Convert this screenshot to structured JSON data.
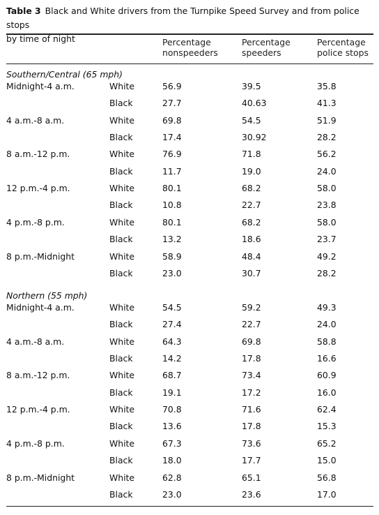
{
  "table": {
    "label": "Table 3",
    "title_line1": "Black and White drivers from the Turnpike Speed Survey and from police stops",
    "title_line2": "by time of night",
    "headers": {
      "nonspeeders_1": "Percentage",
      "nonspeeders_2": "nonspeeders",
      "speeders_1": "Percentage",
      "speeders_2": "speeders",
      "police_1": "Percentage",
      "police_2": "police stops"
    },
    "sections": [
      {
        "title": "Southern/Central (65 mph)",
        "rows": [
          {
            "time": "Midnight-4 a.m.",
            "race": "White",
            "ns": "56.9",
            "sp": "39.5",
            "ps": "35.8"
          },
          {
            "time": "",
            "race": "Black",
            "ns": "27.7",
            "sp": "40.63",
            "ps": "41.3"
          },
          {
            "time": "4 a.m.-8 a.m.",
            "race": "White",
            "ns": "69.8",
            "sp": "54.5",
            "ps": "51.9"
          },
          {
            "time": "",
            "race": "Black",
            "ns": "17.4",
            "sp": "30.92",
            "ps": "28.2"
          },
          {
            "time": "8 a.m.-12 p.m.",
            "race": "White",
            "ns": "76.9",
            "sp": "71.8",
            "ps": "56.2"
          },
          {
            "time": "",
            "race": "Black",
            "ns": "11.7",
            "sp": "19.0",
            "ps": "24.0"
          },
          {
            "time": "12 p.m.-4 p.m.",
            "race": "White",
            "ns": "80.1",
            "sp": "68.2",
            "ps": "58.0"
          },
          {
            "time": "",
            "race": "Black",
            "ns": "10.8",
            "sp": "22.7",
            "ps": "23.8"
          },
          {
            "time": "4 p.m.-8 p.m.",
            "race": "White",
            "ns": "80.1",
            "sp": "68.2",
            "ps": "58.0"
          },
          {
            "time": "",
            "race": "Black",
            "ns": "13.2",
            "sp": "18.6",
            "ps": "23.7"
          },
          {
            "time": "8 p.m.-Midnight",
            "race": "White",
            "ns": "58.9",
            "sp": "48.4",
            "ps": "49.2"
          },
          {
            "time": "",
            "race": "Black",
            "ns": "23.0",
            "sp": "30.7",
            "ps": "28.2"
          }
        ]
      },
      {
        "title": "Northern (55 mph)",
        "rows": [
          {
            "time": "Midnight-4 a.m.",
            "race": "White",
            "ns": "54.5",
            "sp": "59.2",
            "ps": "49.3"
          },
          {
            "time": "",
            "race": "Black",
            "ns": "27.4",
            "sp": "22.7",
            "ps": "24.0"
          },
          {
            "time": "4 a.m.-8 a.m.",
            "race": "White",
            "ns": "64.3",
            "sp": "69.8",
            "ps": "58.8"
          },
          {
            "time": "",
            "race": "Black",
            "ns": "14.2",
            "sp": "17.8",
            "ps": "16.6"
          },
          {
            "time": "8 a.m.-12 p.m.",
            "race": "White",
            "ns": "68.7",
            "sp": "73.4",
            "ps": "60.9"
          },
          {
            "time": "",
            "race": "Black",
            "ns": "19.1",
            "sp": "17.2",
            "ps": "16.0"
          },
          {
            "time": "12 p.m.-4 p.m.",
            "race": "White",
            "ns": "70.8",
            "sp": "71.6",
            "ps": "62.4"
          },
          {
            "time": "",
            "race": "Black",
            "ns": "13.6",
            "sp": "17.8",
            "ps": "15.3"
          },
          {
            "time": "4 p.m.-8 p.m.",
            "race": "White",
            "ns": "67.3",
            "sp": "73.6",
            "ps": "65.2"
          },
          {
            "time": "",
            "race": "Black",
            "ns": "18.0",
            "sp": "17.7",
            "ps": "15.0"
          },
          {
            "time": "8 p.m.-Midnight",
            "race": "White",
            "ns": "62.8",
            "sp": "65.1",
            "ps": "56.8"
          },
          {
            "time": "",
            "race": "Black",
            "ns": "23.0",
            "sp": "23.6",
            "ps": "17.0"
          }
        ]
      }
    ]
  }
}
